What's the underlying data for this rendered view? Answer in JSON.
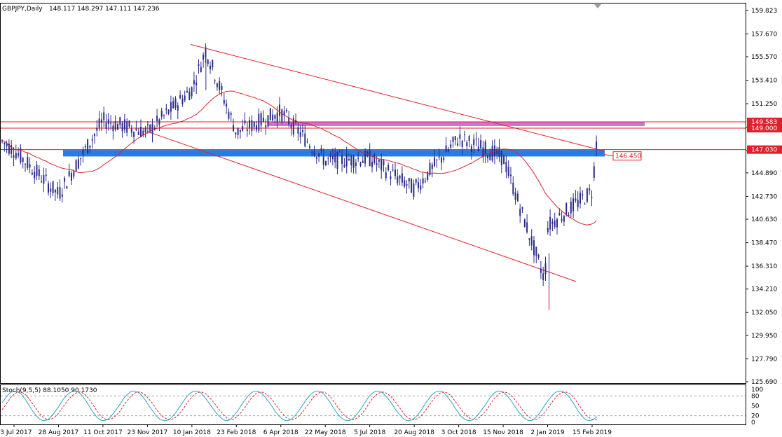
{
  "header": {
    "symbol": "GBPJPY,Daily",
    "ohlc": "148.117 148.297 147.111 147.236"
  },
  "indicator": {
    "label": "Stoch(9,5,5) 88.1050 90.1730",
    "scale": [
      "100",
      "80",
      "50",
      "20",
      "0"
    ],
    "levels": [
      80,
      20
    ]
  },
  "colors": {
    "candle": "#2b2b8a",
    "trend": "#e0202a",
    "ma": "#d8242c",
    "resistance_zone": "#d36fd0",
    "support_zone": "#2a7be0",
    "stoch_main": "#2aa6c8",
    "stoch_signal": "#d8242c",
    "price_tag": "#e0202a",
    "grid": "#000000"
  },
  "chart_data": {
    "type": "candlestick",
    "symbol": "GBPJPY",
    "timeframe": "Daily",
    "ylim": [
      125.69,
      159.823
    ],
    "y_ticks": [
      "159.823",
      "157.670",
      "155.570",
      "153.410",
      "151.250",
      "149.090",
      "146.930",
      "144.890",
      "142.730",
      "140.630",
      "138.470",
      "136.310",
      "134.210",
      "132.050",
      "129.950",
      "127.790",
      "125.690"
    ],
    "x_ticks": [
      "13 Jul 2017",
      "28 Aug 2017",
      "11 Oct 2017",
      "23 Nov 2017",
      "10 Jan 2018",
      "23 Feb 2018",
      "6 Apr 2018",
      "22 May 2018",
      "5 Jul 2018",
      "20 Aug 2018",
      "3 Oct 2018",
      "15 Nov 2018",
      "2 Jan 2019",
      "15 Feb 2019"
    ],
    "price_series": [
      {
        "date": "13 Jul 2017",
        "close": 147.0
      },
      {
        "date": "28 Aug 2017",
        "close": 142.9
      },
      {
        "date": "11 Oct 2017",
        "close": 149.7
      },
      {
        "date": "23 Nov 2017",
        "close": 148.6
      },
      {
        "date": "10 Jan 2018",
        "close": 152.6
      },
      {
        "date": "23 Feb 2018",
        "close": 148.6
      },
      {
        "date": "6 Apr 2018",
        "close": 150.5
      },
      {
        "date": "22 May 2018",
        "close": 146.0
      },
      {
        "date": "5 Jul 2018",
        "close": 146.2
      },
      {
        "date": "20 Aug 2018",
        "close": 143.4
      },
      {
        "date": "3 Oct 2018",
        "close": 148.1
      },
      {
        "date": "15 Nov 2018",
        "close": 146.3
      },
      {
        "date": "2 Jan 2019",
        "close": 140.0
      },
      {
        "date": "15 Feb 2019",
        "close": 143.2
      }
    ],
    "highs_lows": [
      {
        "label": "high",
        "date": "10 Jan 2018",
        "value": 156.5
      },
      {
        "label": "low",
        "date": "2 Jan 2019",
        "value": 132.3
      }
    ],
    "price_labels": [
      "149.583",
      "149.000",
      "147.030",
      "146.450"
    ],
    "levels": [
      149.583,
      149.0,
      147.03
    ],
    "zones": [
      {
        "name": "resistance",
        "low": 149.2,
        "high": 149.6
      },
      {
        "name": "support",
        "low": 146.4,
        "high": 147.0
      }
    ],
    "current_price": 147.03,
    "note_price": 146.45,
    "stochastic": {
      "k": 88.105,
      "d": 90.173,
      "params": "9,5,5"
    }
  }
}
